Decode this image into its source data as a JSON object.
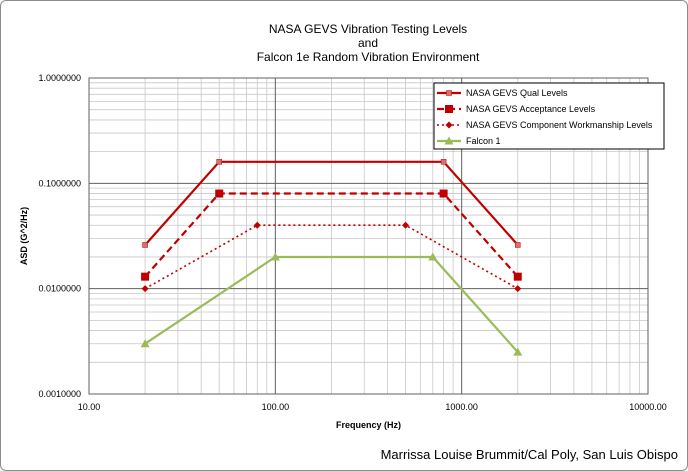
{
  "chart_data": {
    "type": "line",
    "title_lines": [
      "NASA GEVS Vibration  Testing Levels",
      "and",
      "Falcon 1e Random Vibration Environment"
    ],
    "xlabel": "Frequency (Hz)",
    "ylabel": "ASD (G^2/Hz)",
    "x_scale": "log",
    "y_scale": "log",
    "xlim": [
      10,
      10000
    ],
    "ylim": [
      0.001,
      1
    ],
    "x_ticks": [
      10,
      100,
      1000,
      10000
    ],
    "x_tick_labels": [
      "10.00",
      "100.00",
      "1000.00",
      "10000.00"
    ],
    "y_ticks": [
      1,
      0.1,
      0.01,
      0.001
    ],
    "y_tick_labels": [
      "1.0000000",
      "0.1000000",
      "0.0100000",
      "0.0010000"
    ],
    "grid": true,
    "legend_position": "top-right",
    "series": [
      {
        "name": "NASA GEVS Qual Levels",
        "color": "#c00000",
        "style": "solid",
        "marker": "small-square",
        "x": [
          20,
          50,
          800,
          2000
        ],
        "y": [
          0.026,
          0.16,
          0.16,
          0.026
        ]
      },
      {
        "name": "NASA GEVS Acceptance Levels",
        "color": "#c00000",
        "style": "dashed",
        "marker": "square",
        "x": [
          20,
          50,
          800,
          2000
        ],
        "y": [
          0.013,
          0.08,
          0.08,
          0.013
        ]
      },
      {
        "name": "NASA GEVS Component Workmanship Levels",
        "color": "#c00000",
        "style": "dotted",
        "marker": "diamond",
        "x": [
          20,
          80,
          500,
          2000
        ],
        "y": [
          0.01,
          0.04,
          0.04,
          0.01
        ]
      },
      {
        "name": "Falcon 1",
        "color": "#9bbb59",
        "style": "solid",
        "marker": "triangle",
        "x": [
          20,
          100,
          700,
          2000
        ],
        "y": [
          0.003,
          0.02,
          0.02,
          0.0025
        ]
      }
    ]
  },
  "credit": "Marrissa Louise Brummit/Cal Poly, San Luis Obispo"
}
